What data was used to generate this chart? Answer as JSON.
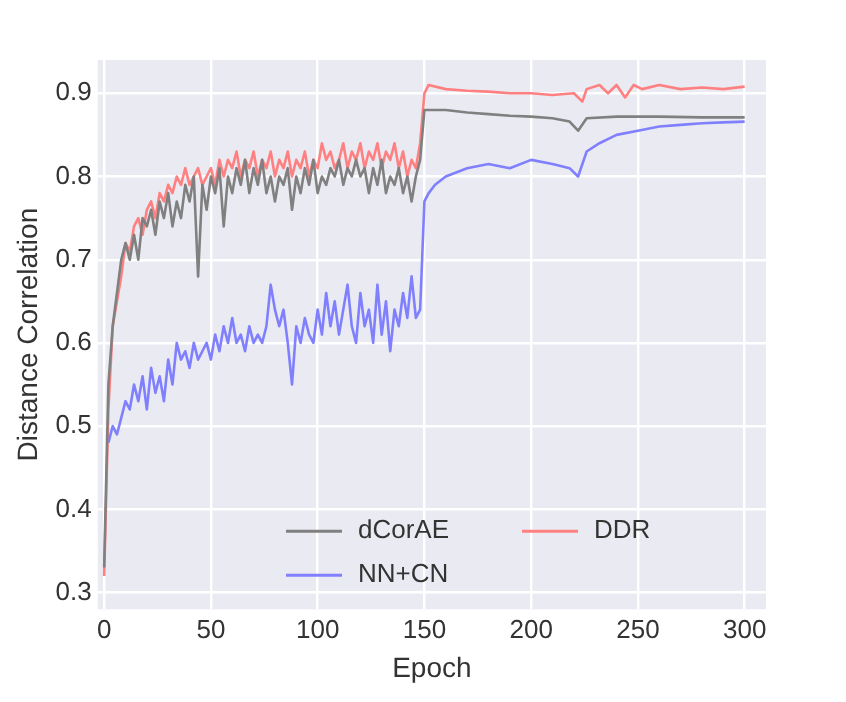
{
  "chart_data": {
    "type": "line",
    "xlabel": "Epoch",
    "ylabel": "Distance Correlation",
    "xlim": [
      -3,
      310
    ],
    "ylim": [
      0.28,
      0.94
    ],
    "xticks": [
      0,
      50,
      100,
      150,
      200,
      250,
      300
    ],
    "yticks": [
      0.3,
      0.4,
      0.5,
      0.6,
      0.7,
      0.8,
      0.9
    ],
    "grid": true,
    "legend": "bottom right",
    "marker": "none",
    "line_style": "solid",
    "series": [
      {
        "name": "dCorAE",
        "color": "#808080",
        "x": [
          0,
          2,
          4,
          6,
          8,
          10,
          12,
          14,
          16,
          18,
          20,
          22,
          24,
          26,
          28,
          30,
          32,
          34,
          36,
          38,
          40,
          42,
          44,
          46,
          48,
          50,
          52,
          54,
          56,
          58,
          60,
          62,
          64,
          66,
          68,
          70,
          72,
          74,
          76,
          78,
          80,
          82,
          84,
          86,
          88,
          90,
          92,
          94,
          96,
          98,
          100,
          102,
          104,
          106,
          108,
          110,
          112,
          114,
          116,
          118,
          120,
          122,
          124,
          126,
          128,
          130,
          132,
          134,
          136,
          138,
          140,
          142,
          144,
          146,
          148,
          150,
          160,
          170,
          180,
          190,
          200,
          210,
          218,
          222,
          226,
          240,
          260,
          280,
          300
        ],
        "values": [
          0.33,
          0.55,
          0.62,
          0.66,
          0.7,
          0.72,
          0.7,
          0.73,
          0.7,
          0.75,
          0.74,
          0.76,
          0.73,
          0.77,
          0.75,
          0.78,
          0.74,
          0.77,
          0.75,
          0.79,
          0.77,
          0.8,
          0.68,
          0.79,
          0.76,
          0.8,
          0.78,
          0.81,
          0.74,
          0.8,
          0.78,
          0.81,
          0.79,
          0.82,
          0.78,
          0.81,
          0.79,
          0.82,
          0.78,
          0.8,
          0.77,
          0.8,
          0.79,
          0.81,
          0.76,
          0.8,
          0.78,
          0.81,
          0.79,
          0.82,
          0.78,
          0.8,
          0.79,
          0.81,
          0.8,
          0.82,
          0.79,
          0.81,
          0.8,
          0.82,
          0.8,
          0.81,
          0.78,
          0.81,
          0.79,
          0.82,
          0.78,
          0.8,
          0.79,
          0.81,
          0.78,
          0.8,
          0.77,
          0.8,
          0.82,
          0.88,
          0.88,
          0.877,
          0.875,
          0.873,
          0.872,
          0.87,
          0.866,
          0.855,
          0.87,
          0.872,
          0.872,
          0.871,
          0.871
        ]
      },
      {
        "name": "NN+CN",
        "color": "#8080ff",
        "x": [
          2,
          4,
          6,
          8,
          10,
          12,
          14,
          16,
          18,
          20,
          22,
          24,
          26,
          28,
          30,
          32,
          34,
          36,
          38,
          40,
          42,
          44,
          46,
          48,
          50,
          52,
          54,
          56,
          58,
          60,
          62,
          64,
          66,
          68,
          70,
          72,
          74,
          76,
          78,
          80,
          82,
          84,
          86,
          88,
          90,
          92,
          94,
          96,
          98,
          100,
          102,
          104,
          106,
          108,
          110,
          112,
          114,
          116,
          118,
          120,
          122,
          124,
          126,
          128,
          130,
          132,
          134,
          136,
          138,
          140,
          142,
          144,
          146,
          148,
          150,
          152,
          155,
          160,
          170,
          180,
          190,
          200,
          210,
          218,
          222,
          226,
          232,
          240,
          250,
          260,
          270,
          280,
          290,
          300
        ],
        "values": [
          0.48,
          0.5,
          0.49,
          0.51,
          0.53,
          0.52,
          0.55,
          0.53,
          0.56,
          0.52,
          0.57,
          0.54,
          0.56,
          0.53,
          0.58,
          0.55,
          0.6,
          0.58,
          0.59,
          0.57,
          0.6,
          0.58,
          0.59,
          0.6,
          0.58,
          0.61,
          0.59,
          0.62,
          0.6,
          0.63,
          0.6,
          0.61,
          0.59,
          0.62,
          0.6,
          0.61,
          0.6,
          0.62,
          0.67,
          0.64,
          0.62,
          0.64,
          0.6,
          0.55,
          0.62,
          0.6,
          0.63,
          0.61,
          0.6,
          0.64,
          0.61,
          0.66,
          0.62,
          0.65,
          0.61,
          0.64,
          0.67,
          0.62,
          0.6,
          0.66,
          0.62,
          0.64,
          0.6,
          0.67,
          0.61,
          0.65,
          0.59,
          0.64,
          0.62,
          0.66,
          0.63,
          0.68,
          0.63,
          0.64,
          0.77,
          0.78,
          0.79,
          0.8,
          0.81,
          0.815,
          0.81,
          0.82,
          0.815,
          0.81,
          0.8,
          0.83,
          0.84,
          0.85,
          0.855,
          0.86,
          0.862,
          0.864,
          0.865,
          0.866
        ]
      },
      {
        "name": "DDR",
        "color": "#ff8080",
        "x": [
          0,
          2,
          4,
          6,
          8,
          10,
          12,
          14,
          16,
          18,
          20,
          22,
          24,
          26,
          28,
          30,
          32,
          34,
          36,
          38,
          40,
          42,
          44,
          46,
          48,
          50,
          52,
          54,
          56,
          58,
          60,
          62,
          64,
          66,
          68,
          70,
          72,
          74,
          76,
          78,
          80,
          82,
          84,
          86,
          88,
          90,
          92,
          94,
          96,
          98,
          100,
          102,
          104,
          106,
          108,
          110,
          112,
          114,
          116,
          118,
          120,
          122,
          124,
          126,
          128,
          130,
          132,
          134,
          136,
          138,
          140,
          142,
          144,
          146,
          148,
          150,
          152,
          160,
          170,
          180,
          190,
          200,
          210,
          220,
          224,
          226,
          232,
          236,
          240,
          244,
          248,
          252,
          260,
          270,
          280,
          290,
          300
        ],
        "values": [
          0.32,
          0.52,
          0.62,
          0.65,
          0.68,
          0.72,
          0.71,
          0.74,
          0.75,
          0.73,
          0.76,
          0.77,
          0.75,
          0.78,
          0.77,
          0.79,
          0.78,
          0.8,
          0.79,
          0.81,
          0.79,
          0.8,
          0.81,
          0.79,
          0.8,
          0.81,
          0.79,
          0.82,
          0.8,
          0.82,
          0.81,
          0.83,
          0.8,
          0.82,
          0.81,
          0.83,
          0.8,
          0.82,
          0.81,
          0.83,
          0.8,
          0.82,
          0.81,
          0.83,
          0.8,
          0.82,
          0.81,
          0.83,
          0.8,
          0.82,
          0.81,
          0.84,
          0.82,
          0.83,
          0.81,
          0.82,
          0.84,
          0.81,
          0.83,
          0.82,
          0.84,
          0.81,
          0.83,
          0.82,
          0.84,
          0.81,
          0.83,
          0.82,
          0.84,
          0.81,
          0.83,
          0.8,
          0.82,
          0.81,
          0.84,
          0.9,
          0.91,
          0.905,
          0.903,
          0.902,
          0.9,
          0.9,
          0.898,
          0.9,
          0.89,
          0.905,
          0.91,
          0.9,
          0.91,
          0.895,
          0.91,
          0.905,
          0.91,
          0.905,
          0.907,
          0.905,
          0.908
        ]
      }
    ]
  }
}
